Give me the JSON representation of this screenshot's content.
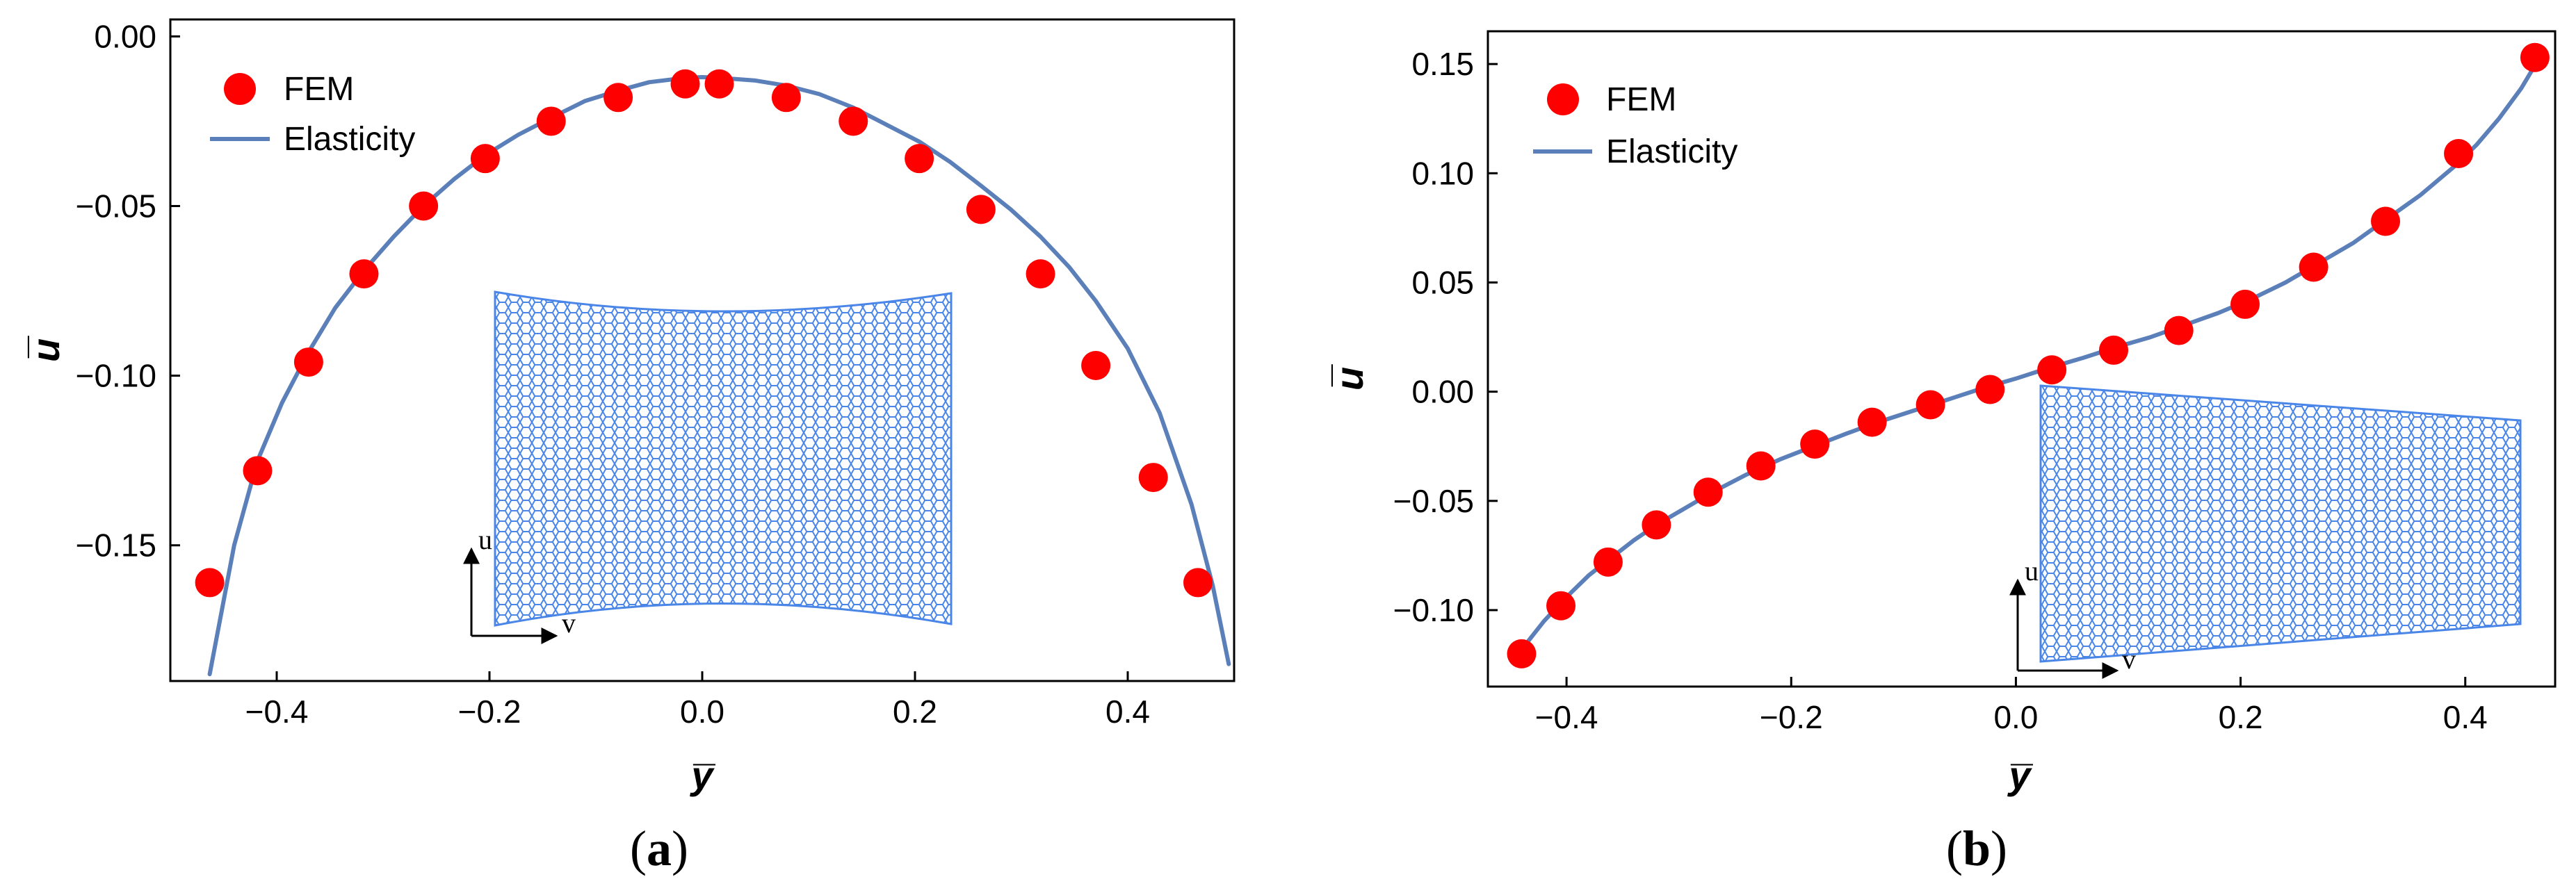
{
  "chart_data": [
    {
      "type": "scatter",
      "panel_label": "a",
      "title": "",
      "xlabel": "y̅",
      "ylabel": "u̅",
      "xlim": [
        -0.5,
        0.5
      ],
      "ylim": [
        -0.19,
        0.005
      ],
      "xticks": [
        -0.4,
        -0.2,
        0.0,
        0.2,
        0.4
      ],
      "xtick_labels": [
        "−0.4",
        "−0.2",
        "0.0",
        "0.2",
        "0.4"
      ],
      "yticks": [
        0.0,
        -0.05,
        -0.1,
        -0.15
      ],
      "ytick_labels": [
        "0.00",
        "−0.05",
        "−0.10",
        "−0.15"
      ],
      "grid": false,
      "legend_position": "top-left",
      "legend": [
        "FEM",
        "Elasticity"
      ],
      "inset_axis_labels": {
        "vertical": "u",
        "horizontal": "v"
      },
      "series": [
        {
          "name": "FEM",
          "kind": "markers",
          "color": "#ff0000",
          "x": [
            -0.463,
            -0.418,
            -0.37,
            -0.318,
            -0.262,
            -0.204,
            -0.142,
            -0.079,
            -0.016,
            0.016,
            0.079,
            0.142,
            0.204,
            0.262,
            0.318,
            0.37,
            0.424,
            0.466
          ],
          "y": [
            -0.161,
            -0.128,
            -0.096,
            -0.07,
            -0.05,
            -0.036,
            -0.025,
            -0.018,
            -0.014,
            -0.014,
            -0.018,
            -0.025,
            -0.036,
            -0.051,
            -0.07,
            -0.097,
            -0.13,
            -0.161
          ]
        },
        {
          "name": "Elasticity",
          "kind": "line",
          "color": "#5b7fb8",
          "x": [
            -0.463,
            -0.44,
            -0.418,
            -0.395,
            -0.37,
            -0.345,
            -0.318,
            -0.29,
            -0.262,
            -0.233,
            -0.204,
            -0.173,
            -0.142,
            -0.11,
            -0.079,
            -0.05,
            -0.016,
            0.0,
            0.016,
            0.05,
            0.079,
            0.11,
            0.142,
            0.173,
            0.204,
            0.233,
            0.262,
            0.29,
            0.318,
            0.345,
            0.37,
            0.4,
            0.43,
            0.46,
            0.48,
            0.495
          ],
          "y": [
            -0.188,
            -0.15,
            -0.125,
            -0.108,
            -0.093,
            -0.08,
            -0.069,
            -0.059,
            -0.05,
            -0.042,
            -0.035,
            -0.029,
            -0.024,
            -0.019,
            -0.016,
            -0.0135,
            -0.0122,
            -0.012,
            -0.0122,
            -0.013,
            -0.0145,
            -0.017,
            -0.021,
            -0.026,
            -0.031,
            -0.037,
            -0.044,
            -0.051,
            -0.059,
            -0.068,
            -0.078,
            -0.092,
            -0.111,
            -0.138,
            -0.162,
            -0.185
          ]
        }
      ]
    },
    {
      "type": "scatter",
      "panel_label": "b",
      "title": "",
      "xlabel": "y̅",
      "ylabel": "u̅",
      "xlim": [
        -0.47,
        0.48
      ],
      "ylim": [
        -0.135,
        0.165
      ],
      "xticks": [
        -0.4,
        -0.2,
        0.0,
        0.2,
        0.4
      ],
      "xtick_labels": [
        "−0.4",
        "−0.2",
        "0.0",
        "0.2",
        "0.4"
      ],
      "yticks": [
        0.15,
        0.1,
        0.05,
        0.0,
        -0.05,
        -0.1
      ],
      "ytick_labels": [
        "0.15",
        "0.10",
        "0.05",
        "0.00",
        "−0.05",
        "−0.10"
      ],
      "grid": false,
      "legend_position": "top-left",
      "legend": [
        "FEM",
        "Elasticity"
      ],
      "inset_axis_labels": {
        "vertical": "u",
        "horizontal": "v"
      },
      "series": [
        {
          "name": "FEM",
          "kind": "markers",
          "color": "#ff0000",
          "x": [
            -0.44,
            -0.405,
            -0.363,
            -0.32,
            -0.274,
            -0.227,
            -0.179,
            -0.128,
            -0.076,
            -0.023,
            0.032,
            0.087,
            0.145,
            0.204,
            0.265,
            0.329,
            0.394,
            0.462
          ],
          "y": [
            -0.12,
            -0.098,
            -0.078,
            -0.061,
            -0.046,
            -0.034,
            -0.024,
            -0.014,
            -0.006,
            0.001,
            0.01,
            0.019,
            0.028,
            0.04,
            0.057,
            0.078,
            0.109,
            0.153
          ]
        },
        {
          "name": "Elasticity",
          "kind": "line",
          "color": "#5b7fb8",
          "x": [
            -0.44,
            -0.42,
            -0.4,
            -0.38,
            -0.36,
            -0.34,
            -0.32,
            -0.3,
            -0.27,
            -0.24,
            -0.21,
            -0.18,
            -0.15,
            -0.12,
            -0.09,
            -0.06,
            -0.03,
            0.0,
            0.03,
            0.06,
            0.09,
            0.12,
            0.15,
            0.18,
            0.21,
            0.24,
            0.27,
            0.3,
            0.33,
            0.36,
            0.39,
            0.41,
            0.43,
            0.45,
            0.465
          ],
          "y": [
            -0.118,
            -0.105,
            -0.094,
            -0.084,
            -0.076,
            -0.068,
            -0.061,
            -0.055,
            -0.046,
            -0.038,
            -0.031,
            -0.025,
            -0.019,
            -0.0135,
            -0.0085,
            -0.0035,
            0.0015,
            0.006,
            0.011,
            0.0155,
            0.0205,
            0.025,
            0.0305,
            0.036,
            0.0425,
            0.05,
            0.059,
            0.068,
            0.079,
            0.09,
            0.103,
            0.113,
            0.125,
            0.139,
            0.152
          ]
        }
      ]
    }
  ]
}
